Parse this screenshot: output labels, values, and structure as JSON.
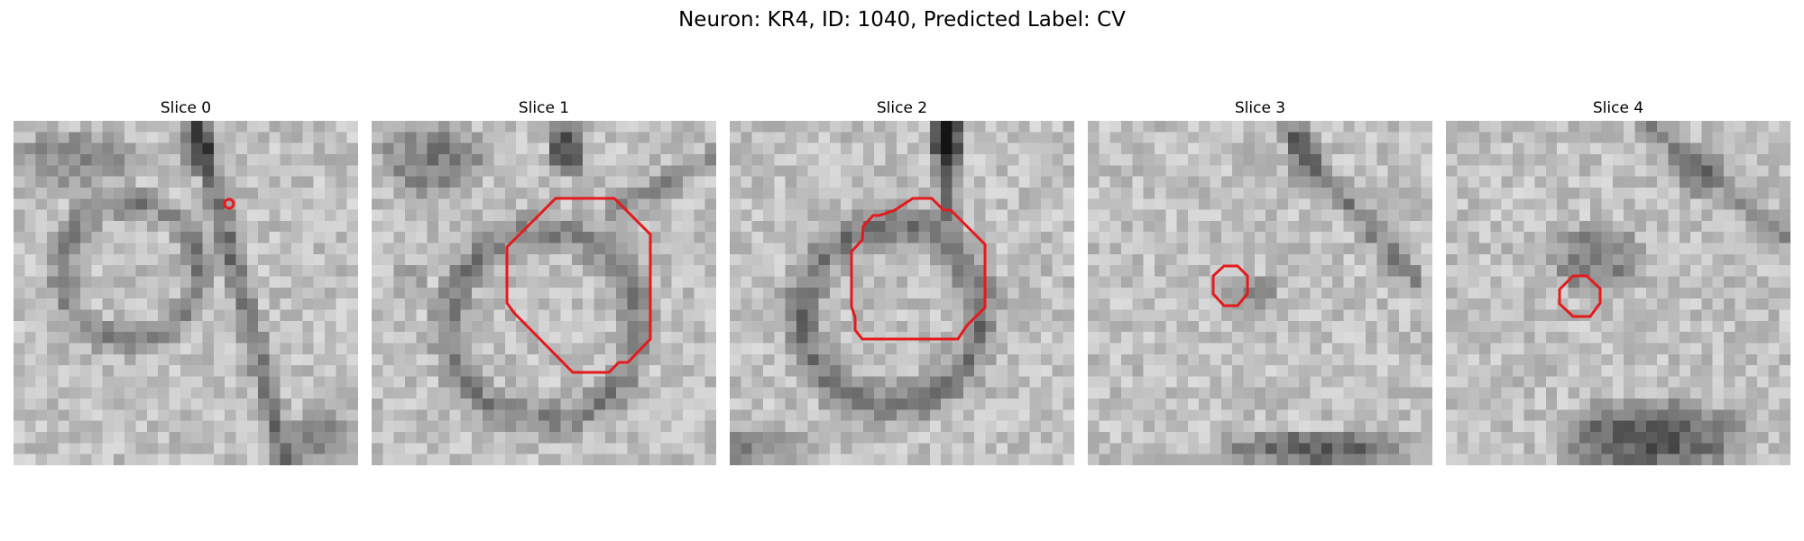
{
  "figure": {
    "title": "Neuron: KR4, ID: 1040, Predicted Label: CV"
  },
  "colors": {
    "contour": "#e41a1c"
  },
  "panels": [
    {
      "title": "Slice 0",
      "grid_cells": 31,
      "seed": 11
    },
    {
      "title": "Slice 1",
      "grid_cells": 31,
      "seed": 23
    },
    {
      "title": "Slice 2",
      "grid_cells": 31,
      "seed": 37
    },
    {
      "title": "Slice 3",
      "grid_cells": 31,
      "seed": 41
    },
    {
      "title": "Slice 4",
      "grid_cells": 31,
      "seed": 53
    }
  ]
}
